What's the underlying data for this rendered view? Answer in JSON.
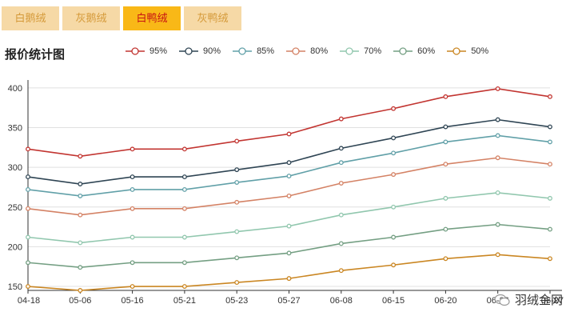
{
  "tabs": [
    {
      "label": "白鹅绒",
      "active": false
    },
    {
      "label": "灰鹅绒",
      "active": false
    },
    {
      "label": "白鸭绒",
      "active": true
    },
    {
      "label": "灰鸭绒",
      "active": false
    }
  ],
  "watermark": {
    "text": "羽绒金网"
  },
  "chart_data": {
    "type": "line",
    "title": "报价统计图",
    "xlabel": "",
    "ylabel": "",
    "categories": [
      "04-18",
      "05-06",
      "05-16",
      "05-21",
      "05-23",
      "05-27",
      "06-08",
      "06-15",
      "06-20",
      "06-26",
      "06-27"
    ],
    "yticks": [
      150,
      200,
      250,
      300,
      350,
      400
    ],
    "ylim": [
      145,
      410
    ],
    "grid": true,
    "legend_position": "top",
    "series": [
      {
        "name": "95%",
        "color": "#c23531",
        "values": [
          323,
          314,
          323,
          323,
          333,
          342,
          361,
          374,
          389,
          399,
          389
        ]
      },
      {
        "name": "90%",
        "color": "#2f4554",
        "values": [
          288,
          279,
          288,
          288,
          297,
          306,
          324,
          337,
          351,
          360,
          351
        ]
      },
      {
        "name": "85%",
        "color": "#61a0a8",
        "values": [
          272,
          264,
          272,
          272,
          281,
          289,
          306,
          318,
          332,
          340,
          332
        ]
      },
      {
        "name": "80%",
        "color": "#d48265",
        "values": [
          248,
          240,
          248,
          248,
          256,
          264,
          280,
          291,
          304,
          312,
          304
        ]
      },
      {
        "name": "70%",
        "color": "#91c7ae",
        "values": [
          212,
          205,
          212,
          212,
          219,
          226,
          240,
          250,
          261,
          268,
          261
        ]
      },
      {
        "name": "60%",
        "color": "#749f83",
        "values": [
          180,
          174,
          180,
          180,
          186,
          192,
          204,
          212,
          222,
          228,
          222
        ]
      },
      {
        "name": "50%",
        "color": "#ca8622",
        "values": [
          150,
          145,
          150,
          150,
          155,
          160,
          170,
          177,
          185,
          190,
          185
        ]
      }
    ]
  }
}
